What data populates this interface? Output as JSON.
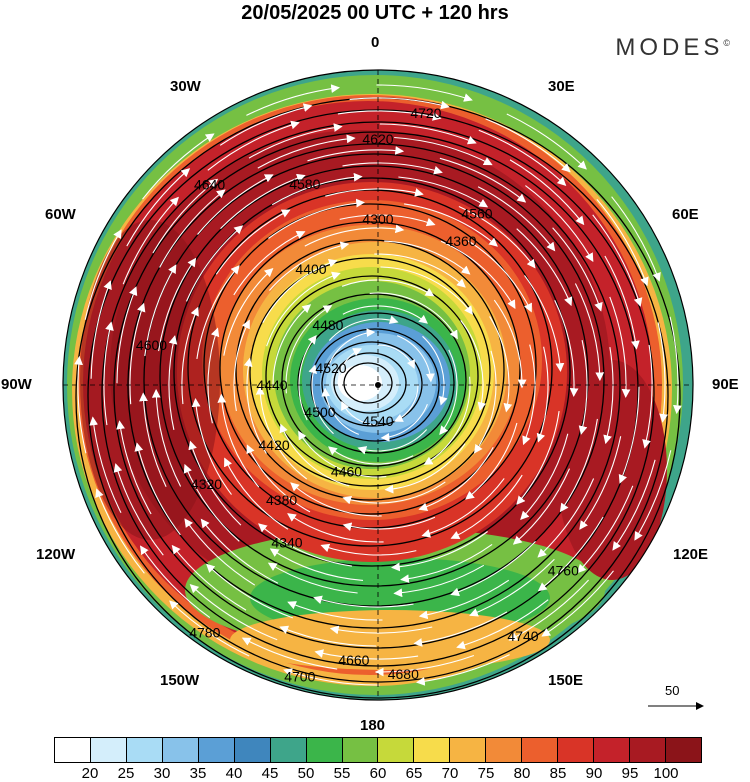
{
  "header": {
    "title": "20/05/2025  00 UTC  + 120 hrs",
    "brand": "MODES",
    "brand_mark": "©"
  },
  "longitudes": {
    "top": "0",
    "bottom": "180",
    "left": "90W",
    "right": "90E",
    "upper_left_30": "30W",
    "upper_right_30": "30E",
    "upper_left_60": "60W",
    "upper_right_60": "60E",
    "lower_left_120": "120W",
    "lower_right_120": "120E",
    "lower_left_150": "150W",
    "lower_right_150": "150E"
  },
  "contours": {
    "labels": [
      "4300",
      "4320",
      "4340",
      "4360",
      "4380",
      "4400",
      "4420",
      "4440",
      "4460",
      "4480",
      "4500",
      "4520",
      "4540",
      "4560",
      "4580",
      "4600",
      "4620",
      "4640",
      "4660",
      "4680",
      "4700",
      "4720",
      "4740",
      "4760",
      "4780"
    ]
  },
  "wind_scale": {
    "label": "50"
  },
  "colorbar": {
    "ticks": [
      "20",
      "25",
      "30",
      "35",
      "40",
      "45",
      "50",
      "55",
      "60",
      "65",
      "70",
      "75",
      "80",
      "85",
      "90",
      "95",
      "100"
    ],
    "colors": [
      "#ffffff",
      "#d4eefb",
      "#a9dcf5",
      "#88c2ea",
      "#5b9fd6",
      "#3f86bd",
      "#3ea58a",
      "#3bb54a",
      "#76c043",
      "#c6d93a",
      "#f7dc4b",
      "#f6b443",
      "#f28a38",
      "#ec5f2d",
      "#d93427",
      "#c4222a",
      "#a81a22",
      "#8b1419"
    ]
  }
}
